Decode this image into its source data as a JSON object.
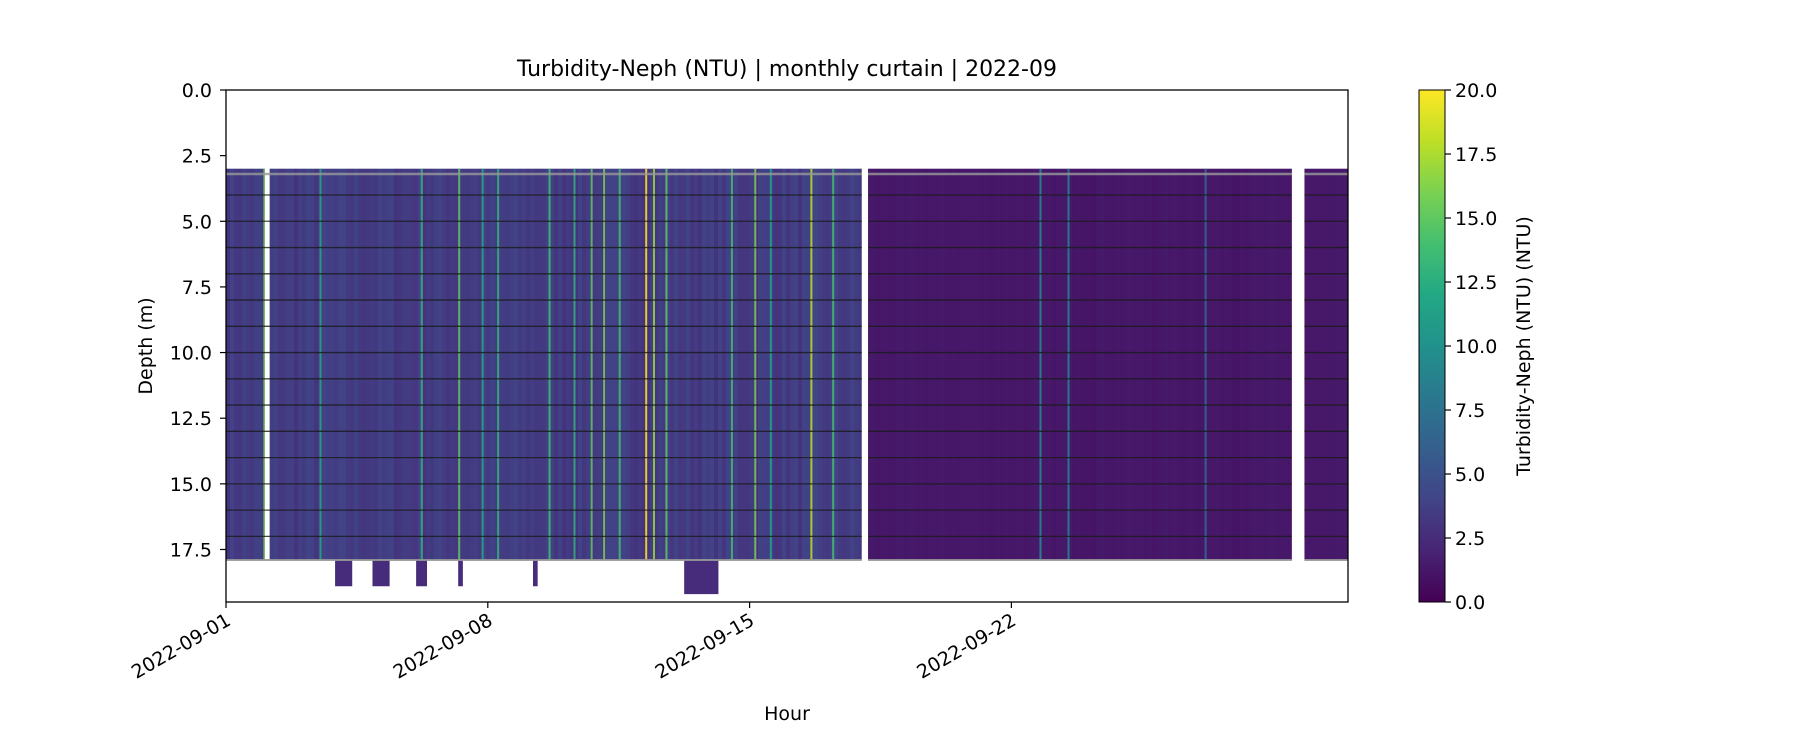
{
  "chart_data": {
    "type": "heatmap",
    "title": "Turbidity-Neph (NTU) | monthly curtain | 2022-09",
    "xlabel": "Hour",
    "ylabel": "Depth (m)",
    "colorbar_label": "Turbidity-Neph (NTU) (NTU)",
    "colormap": "viridis",
    "x_range": [
      "2022-09-01",
      "2022-10-01"
    ],
    "x_ticks": [
      "2022-09-01",
      "2022-09-08",
      "2022-09-15",
      "2022-09-22"
    ],
    "y_range": [
      19.5,
      0.0
    ],
    "y_inverted": true,
    "y_ticks": [
      "0.0",
      "2.5",
      "5.0",
      "7.5",
      "10.0",
      "12.5",
      "15.0",
      "17.5"
    ],
    "color_range": [
      0,
      20
    ],
    "colorbar_ticks": [
      "0.0",
      "2.5",
      "5.0",
      "7.5",
      "10.0",
      "12.5",
      "15.0",
      "17.5",
      "20.0"
    ],
    "sensor_depths_m": [
      3.2,
      4.0,
      5.0,
      6.0,
      7.0,
      8.0,
      9.0,
      10.0,
      11.0,
      12.0,
      13.0,
      14.0,
      15.0,
      16.0,
      17.0
    ],
    "data_depth_range_m": [
      3.0,
      17.9
    ],
    "segments": [
      {
        "start": "2022-09-01",
        "end": "2022-09-18",
        "typical_value": 3.5,
        "note_label": ""
      },
      {
        "start": "2022-09-18 04:00",
        "end": "2022-09-29 12:00",
        "typical_value": 1.3,
        "note_label": ""
      },
      {
        "start": "2022-09-29 20:00",
        "end": "2022-10-01",
        "typical_value": 1.3,
        "note_label": ""
      }
    ],
    "gaps": [
      [
        "2022-09-02 01:00",
        "2022-09-02 04:00"
      ],
      [
        "2022-09-18 00:00",
        "2022-09-18 04:00"
      ],
      [
        "2022-09-29 12:00",
        "2022-09-29 20:00"
      ]
    ],
    "deep_extensions": [
      {
        "start": "2022-09-03 22:00",
        "end": "2022-09-04 09:00",
        "bottom": 18.9
      },
      {
        "start": "2022-09-04 22:00",
        "end": "2022-09-05 09:00",
        "bottom": 18.9
      },
      {
        "start": "2022-09-06 02:00",
        "end": "2022-09-06 09:00",
        "bottom": 18.9
      },
      {
        "start": "2022-09-07 05:00",
        "end": "2022-09-07 08:00",
        "bottom": 18.9
      },
      {
        "start": "2022-09-09 05:00",
        "end": "2022-09-09 08:00",
        "bottom": 18.9
      },
      {
        "start": "2022-09-13 06:00",
        "end": "2022-09-14 04:00",
        "bottom": 19.2
      }
    ],
    "high_value_streaks": [
      {
        "date": "2022-09-02 00:00",
        "value": 16
      },
      {
        "date": "2022-09-03 12:00",
        "value": 12
      },
      {
        "date": "2022-09-06 05:00",
        "value": 13
      },
      {
        "date": "2022-09-07 05:00",
        "value": 15
      },
      {
        "date": "2022-09-07 20:00",
        "value": 12
      },
      {
        "date": "2022-09-08 06:00",
        "value": 13
      },
      {
        "date": "2022-09-09 15:00",
        "value": 14
      },
      {
        "date": "2022-09-10 07:00",
        "value": 13
      },
      {
        "date": "2022-09-10 18:00",
        "value": 15
      },
      {
        "date": "2022-09-11 02:00",
        "value": 16
      },
      {
        "date": "2022-09-11 12:00",
        "value": 14
      },
      {
        "date": "2022-09-12 05:00",
        "value": 20
      },
      {
        "date": "2022-09-12 10:00",
        "value": 17
      },
      {
        "date": "2022-09-12 18:00",
        "value": 15
      },
      {
        "date": "2022-09-14 12:00",
        "value": 14
      },
      {
        "date": "2022-09-15 03:00",
        "value": 16
      },
      {
        "date": "2022-09-15 13:00",
        "value": 12
      },
      {
        "date": "2022-09-16 15:00",
        "value": 18
      },
      {
        "date": "2022-09-17 05:00",
        "value": 14
      },
      {
        "date": "2022-09-22 18:00",
        "value": 10
      },
      {
        "date": "2022-09-23 12:00",
        "value": 9
      },
      {
        "date": "2022-09-27 04:00",
        "value": 7
      }
    ]
  }
}
